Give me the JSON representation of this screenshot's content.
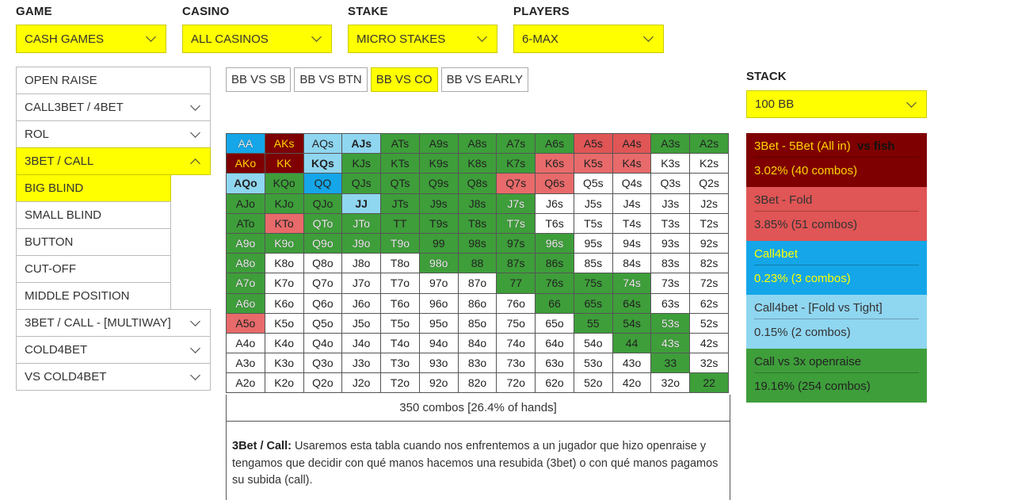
{
  "filters": [
    {
      "label": "GAME",
      "value": "CASH GAMES"
    },
    {
      "label": "CASINO",
      "value": "ALL CASINOS"
    },
    {
      "label": "STAKE",
      "value": "MICRO STAKES"
    },
    {
      "label": "PLAYERS",
      "value": "6-MAX"
    }
  ],
  "stack": {
    "label": "STACK",
    "value": "100 BB"
  },
  "menu": {
    "items": [
      {
        "label": "OPEN RAISE"
      },
      {
        "label": "CALL3BET / 4BET"
      },
      {
        "label": "ROL"
      },
      {
        "label": "3BET / CALL"
      },
      {
        "label": "BIG BLIND"
      },
      {
        "label": "SMALL BLIND"
      },
      {
        "label": "BUTTON"
      },
      {
        "label": "CUT-OFF"
      },
      {
        "label": "MIDDLE POSITION"
      },
      {
        "label": "3BET / CALL - [MULTIWAY]"
      },
      {
        "label": "COLD4BET"
      },
      {
        "label": "VS COLD4BET"
      }
    ]
  },
  "position_tabs": [
    "BB VS SB",
    "BB VS BTN",
    "BB VS CO",
    "BB VS EARLY"
  ],
  "hands": [
    [
      "AA",
      "AKs",
      "AQs",
      "AJs",
      "ATs",
      "A9s",
      "A8s",
      "A7s",
      "A6s",
      "A5s",
      "A4s",
      "A3s",
      "A2s"
    ],
    [
      "AKo",
      "KK",
      "KQs",
      "KJs",
      "KTs",
      "K9s",
      "K8s",
      "K7s",
      "K6s",
      "K5s",
      "K4s",
      "K3s",
      "K2s"
    ],
    [
      "AQo",
      "KQo",
      "QQ",
      "QJs",
      "QTs",
      "Q9s",
      "Q8s",
      "Q7s",
      "Q6s",
      "Q5s",
      "Q4s",
      "Q3s",
      "Q2s"
    ],
    [
      "AJo",
      "KJo",
      "QJo",
      "JJ",
      "JTs",
      "J9s",
      "J8s",
      "J7s",
      "J6s",
      "J5s",
      "J4s",
      "J3s",
      "J2s"
    ],
    [
      "ATo",
      "KTo",
      "QTo",
      "JTo",
      "TT",
      "T9s",
      "T8s",
      "T7s",
      "T6s",
      "T5s",
      "T4s",
      "T3s",
      "T2s"
    ],
    [
      "A9o",
      "K9o",
      "Q9o",
      "J9o",
      "T9o",
      "99",
      "98s",
      "97s",
      "96s",
      "95s",
      "94s",
      "93s",
      "92s"
    ],
    [
      "A8o",
      "K8o",
      "Q8o",
      "J8o",
      "T8o",
      "98o",
      "88",
      "87s",
      "86s",
      "85s",
      "84s",
      "83s",
      "82s"
    ],
    [
      "A7o",
      "K7o",
      "Q7o",
      "J7o",
      "T7o",
      "97o",
      "87o",
      "77",
      "76s",
      "75s",
      "74s",
      "73s",
      "72s"
    ],
    [
      "A6o",
      "K6o",
      "Q6o",
      "J6o",
      "T6o",
      "96o",
      "86o",
      "76o",
      "66",
      "65s",
      "64s",
      "63s",
      "62s"
    ],
    [
      "A5o",
      "K5o",
      "Q5o",
      "J5o",
      "T5o",
      "95o",
      "85o",
      "75o",
      "65o",
      "55",
      "54s",
      "53s",
      "52s"
    ],
    [
      "A4o",
      "K4o",
      "Q4o",
      "J4o",
      "T4o",
      "94o",
      "84o",
      "74o",
      "64o",
      "54o",
      "44",
      "43s",
      "42s"
    ],
    [
      "A3o",
      "K3o",
      "Q3o",
      "J3o",
      "T3o",
      "93o",
      "83o",
      "73o",
      "63o",
      "53o",
      "43o",
      "33",
      "32s"
    ],
    [
      "A2o",
      "K2o",
      "Q2o",
      "J2o",
      "T2o",
      "92o",
      "82o",
      "72o",
      "62o",
      "52o",
      "42o",
      "32o",
      "22"
    ]
  ],
  "summary": "350 combos [26.4% of hands]",
  "description": {
    "title": "3Bet / Call:",
    "text": " Usaremos esta tabla cuando nos enfrentemos a un jugador que hizo openraise y tengamos que decidir con qué manos hacemos una resubida (3bet) o con qué manos pagamos su subida (call)."
  },
  "legend": [
    {
      "name": "3Bet - 5Bet (All in)",
      "extra": "vs fish",
      "pct": "3.02%  (40 combos)",
      "color": "#7e0000",
      "text_color": "#ffd400"
    },
    {
      "name": "3Bet - Fold",
      "extra": "",
      "pct": "3.85%  (51 combos)",
      "color": "#e05555",
      "text_color": "#333333"
    },
    {
      "name": "Call4bet",
      "extra": "",
      "pct": "0.23%  (3 combos)",
      "color": "#14a6e8",
      "text_color": "#ffff00"
    },
    {
      "name": "Call4bet - [Fold vs Tight]",
      "extra": "",
      "pct": "0.15%  (2 combos)",
      "color": "#8fd6f0",
      "text_color": "#333333"
    },
    {
      "name": "Call vs 3x openraise",
      "extra": "",
      "pct": "19.16%  (254 combos)",
      "color": "#3e9e3a",
      "text_color": "#222222"
    }
  ]
}
